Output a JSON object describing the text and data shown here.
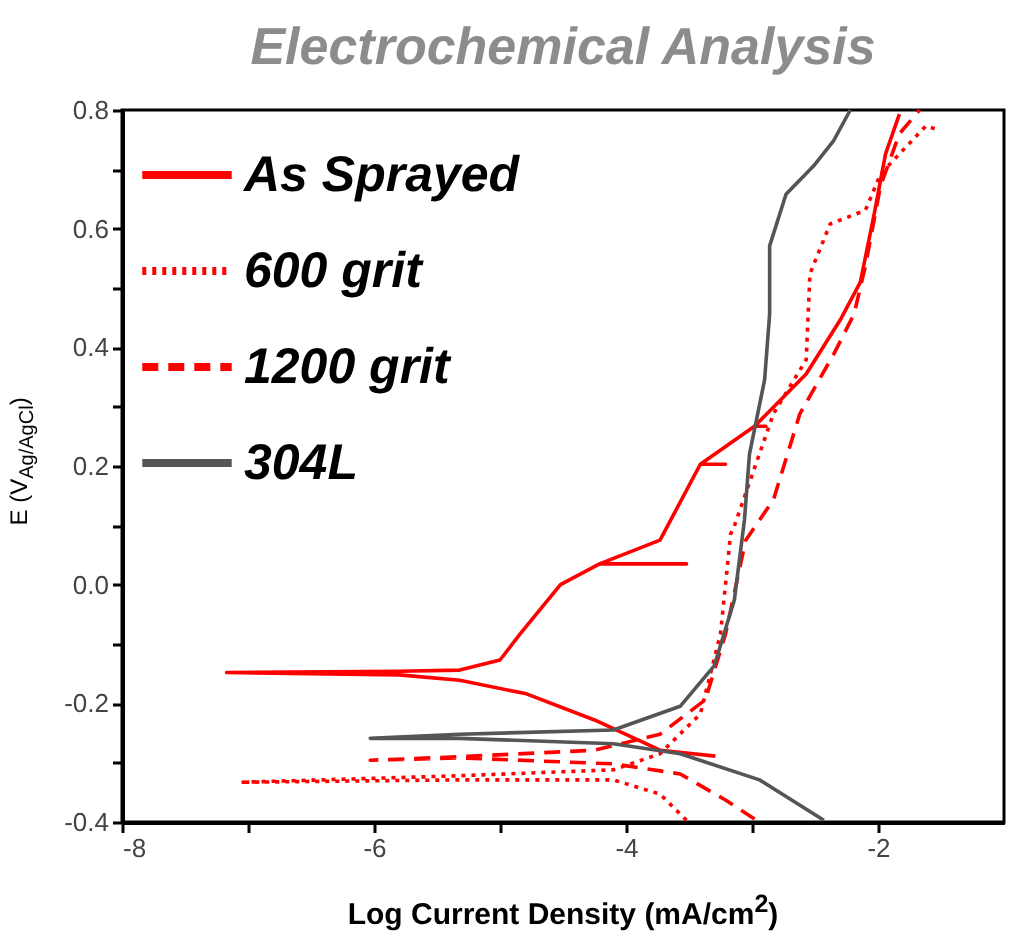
{
  "chart_data": {
    "type": "line",
    "title": "Electrochemical Analysis",
    "xlabel": "Log Current Density (mA/cm$^{2}$)",
    "ylabel": "E (V$_{Ag/AgCl}$)",
    "xlim": [
      -8,
      -1
    ],
    "ylim": [
      -0.4,
      0.8
    ],
    "xticks": [
      -8,
      {
        "value": -7,
        "label": null
      },
      -6,
      {
        "value": -5,
        "label": null
      },
      -4,
      {
        "value": -3,
        "label": null
      },
      -2
    ],
    "yticks": [
      {
        "value": -0.4,
        "label": "-0.4"
      },
      {
        "value": -0.3,
        "label": null
      },
      {
        "value": -0.2,
        "label": "-0.2"
      },
      {
        "value": -0.1,
        "label": null
      },
      {
        "value": 0,
        "label": "0.0"
      },
      {
        "value": 0.1,
        "label": null
      },
      {
        "value": 0.2,
        "label": "0.2"
      },
      {
        "value": 0.3,
        "label": null
      },
      {
        "value": 0.4,
        "label": "0.4"
      },
      {
        "value": 0.5,
        "label": null
      },
      {
        "value": 0.6,
        "label": "0.6"
      },
      {
        "value": 0.7,
        "label": null
      },
      {
        "value": 0.8,
        "label": "0.8"
      }
    ],
    "grid": false,
    "legend": "top left",
    "series": [
      {
        "name": "As Sprayed",
        "color": "#ff0000",
        "line_style": "solid",
        "x": [
          -3.29,
          -3.73,
          -4.25,
          -4.79,
          -5.32,
          -5.8,
          -7.17,
          -5.8,
          -5.32,
          -5.0,
          -4.84,
          -4.52,
          -4.21,
          -3.52,
          -4.21,
          -3.73,
          -3.41,
          -3.21,
          -3.41,
          -2.98,
          -2.89,
          -2.98,
          -2.57,
          -2.3,
          -2.14,
          -2.03,
          -1.94,
          -1.83
        ],
        "values": [
          -0.289,
          -0.279,
          -0.228,
          -0.184,
          -0.161,
          -0.152,
          -0.148,
          -0.146,
          -0.144,
          -0.127,
          -0.083,
          0.0,
          0.035,
          0.035,
          0.035,
          0.075,
          0.203,
          0.203,
          0.203,
          0.267,
          0.267,
          0.267,
          0.355,
          0.446,
          0.51,
          0.625,
          0.726,
          0.793
        ]
      },
      {
        "name": "600 grit",
        "color": "#ff0000",
        "line_style": "dotted",
        "x": [
          -3.52,
          -3.73,
          -4.1,
          -5.32,
          -7.06,
          -5.32,
          -4.1,
          -3.73,
          -3.41,
          -3.25,
          -3.17,
          -3.14,
          -2.83,
          -2.57,
          -2.54,
          -2.38,
          -2.1,
          -1.98,
          -1.83,
          -1.62,
          -1.51
        ],
        "values": [
          -0.397,
          -0.353,
          -0.329,
          -0.329,
          -0.333,
          -0.322,
          -0.312,
          -0.285,
          -0.218,
          -0.083,
          0.085,
          0.099,
          0.288,
          0.379,
          0.524,
          0.608,
          0.631,
          0.692,
          0.726,
          0.773,
          0.766
        ]
      },
      {
        "name": "1200 grit",
        "color": "#ff0000",
        "line_style": "dashed",
        "x": [
          -2.98,
          -3.21,
          -3.57,
          -4.1,
          -5.32,
          -6.03,
          -5.32,
          -4.25,
          -3.73,
          -3.37,
          -3.21,
          -3.05,
          -2.83,
          -2.62,
          -2.35,
          -2.19,
          -2.1,
          -1.98,
          -1.83,
          -1.67
        ],
        "values": [
          -0.395,
          -0.363,
          -0.319,
          -0.302,
          -0.292,
          -0.296,
          -0.29,
          -0.279,
          -0.252,
          -0.194,
          -0.083,
          0.075,
          0.143,
          0.288,
          0.389,
          0.456,
          0.537,
          0.672,
          0.76,
          0.8
        ]
      },
      {
        "name": "304L",
        "color": "#555555",
        "line_style": "solid",
        "x": [
          -2.43,
          -2.94,
          -3.57,
          -4.1,
          -5.32,
          -6.03,
          -5.32,
          -4.1,
          -3.57,
          -3.3,
          -3.14,
          -3.06,
          -3.02,
          -2.9,
          -2.86,
          -2.86,
          -2.73,
          -2.51,
          -2.35,
          -2.22
        ],
        "values": [
          -0.397,
          -0.329,
          -0.285,
          -0.268,
          -0.259,
          -0.259,
          -0.252,
          -0.245,
          -0.205,
          -0.137,
          -0.026,
          0.109,
          0.22,
          0.345,
          0.456,
          0.571,
          0.658,
          0.706,
          0.749,
          0.8
        ]
      }
    ]
  }
}
